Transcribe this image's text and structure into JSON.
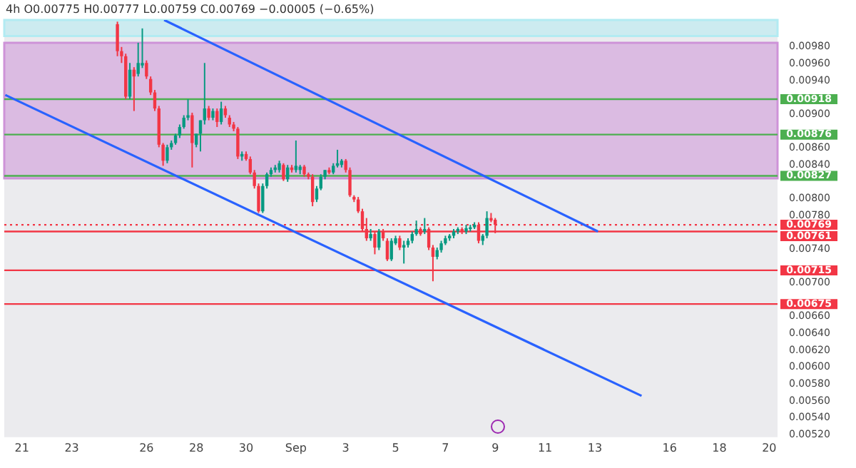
{
  "chart_data": {
    "type": "candlestick",
    "title": "4h O0.00775 H0.00777 L0.00759 C0.00769 −0.00005 (−0.65%)",
    "x": [
      "--08-24T20:00",
      "--08-25T00:00",
      "--08-25T04:00",
      "--08-25T08:00",
      "--08-25T12:00",
      "--08-25T16:00",
      "--08-25T20:00",
      "--08-26T00:00",
      "--08-26T04:00",
      "--08-26T08:00",
      "--08-26T12:00",
      "--08-26T16:00",
      "--08-26T20:00",
      "--08-27T00:00",
      "--08-27T04:00",
      "--08-27T08:00",
      "--08-27T12:00",
      "--08-27T16:00",
      "--08-27T20:00",
      "--08-28T00:00",
      "--08-28T04:00",
      "--08-28T08:00",
      "--08-28T12:00",
      "--08-28T16:00",
      "--08-28T20:00",
      "--08-29T00:00",
      "--08-29T04:00",
      "--08-29T08:00",
      "--08-29T12:00",
      "--08-29T16:00",
      "--08-29T20:00",
      "--08-30T00:00",
      "--08-30T04:00",
      "--08-30T08:00",
      "--08-30T12:00",
      "--08-30T16:00",
      "--08-30T20:00",
      "--08-31T00:00",
      "--08-31T04:00",
      "--08-31T08:00",
      "--08-31T12:00",
      "--08-31T16:00",
      "--08-31T20:00",
      "--09-01T00:00",
      "--09-01T04:00",
      "--09-01T08:00",
      "--09-01T12:00",
      "--09-01T16:00",
      "--09-01T20:00",
      "--09-02T00:00",
      "--09-02T04:00",
      "--09-02T08:00",
      "--09-02T12:00",
      "--09-02T16:00",
      "--09-02T20:00",
      "--09-03T00:00",
      "--09-03T04:00",
      "--09-03T08:00",
      "--09-03T12:00",
      "--09-03T16:00",
      "--09-03T20:00",
      "--09-04T00:00",
      "--09-04T04:00",
      "--09-04T08:00",
      "--09-04T12:00",
      "--09-04T16:00",
      "--09-04T20:00",
      "--09-05T00:00",
      "--09-05T04:00",
      "--09-05T08:00",
      "--09-05T12:00",
      "--09-05T16:00",
      "--09-05T20:00",
      "--09-06T00:00",
      "--09-06T04:00",
      "--09-06T08:00",
      "--09-06T12:00",
      "--09-06T16:00",
      "--09-06T20:00",
      "--09-07T00:00",
      "--09-07T04:00",
      "--09-07T08:00",
      "--09-07T12:00",
      "--09-07T16:00",
      "--09-07T20:00",
      "--09-08T00:00",
      "--09-08T04:00",
      "--09-08T08:00",
      "--09-08T12:00",
      "--09-08T16:00",
      "--09-08T20:00",
      "--09-09T00:00"
    ],
    "ohlc": [
      [
        0.01007,
        0.0101,
        0.00969,
        0.00975
      ],
      [
        0.00975,
        0.0098,
        0.00961,
        0.00969
      ],
      [
        0.00969,
        0.00972,
        0.00918,
        0.00921
      ],
      [
        0.00921,
        0.00961,
        0.00918,
        0.00953
      ],
      [
        0.00953,
        0.00956,
        0.00904,
        0.00945
      ],
      [
        0.00948,
        0.00985,
        0.00945,
        0.00961
      ],
      [
        0.00958,
        0.01002,
        0.00955,
        0.00961
      ],
      [
        0.00961,
        0.00964,
        0.00942,
        0.00945
      ],
      [
        0.00942,
        0.00945,
        0.00923,
        0.00926
      ],
      [
        0.00926,
        0.00929,
        0.00904,
        0.00907
      ],
      [
        0.00907,
        0.0091,
        0.00861,
        0.00864
      ],
      [
        0.00864,
        0.00866,
        0.00839,
        0.00845
      ],
      [
        0.00845,
        0.00864,
        0.00842,
        0.00861
      ],
      [
        0.00861,
        0.00869,
        0.00858,
        0.00866
      ],
      [
        0.00866,
        0.00877,
        0.00864,
        0.00875
      ],
      [
        0.00875,
        0.00888,
        0.00872,
        0.00885
      ],
      [
        0.00885,
        0.00899,
        0.00883,
        0.00896
      ],
      [
        0.00896,
        0.00918,
        0.00893,
        0.00899
      ],
      [
        0.00899,
        0.00902,
        0.00837,
        0.00866
      ],
      [
        0.00864,
        0.00877,
        0.00861,
        0.00877
      ],
      [
        0.00877,
        0.00893,
        0.00856,
        0.00893
      ],
      [
        0.00893,
        0.00961,
        0.00888,
        0.00907
      ],
      [
        0.00907,
        0.0091,
        0.00893,
        0.00896
      ],
      [
        0.00896,
        0.00907,
        0.00893,
        0.00904
      ],
      [
        0.00904,
        0.00907,
        0.00885,
        0.00891
      ],
      [
        0.00891,
        0.00915,
        0.00888,
        0.00907
      ],
      [
        0.00907,
        0.0091,
        0.00896,
        0.00899
      ],
      [
        0.00896,
        0.00899,
        0.00885,
        0.00888
      ],
      [
        0.00888,
        0.00891,
        0.0088,
        0.00883
      ],
      [
        0.00883,
        0.00885,
        0.00847,
        0.0085
      ],
      [
        0.0085,
        0.00856,
        0.00845,
        0.00853
      ],
      [
        0.00853,
        0.00856,
        0.00845,
        0.00847
      ],
      [
        0.00847,
        0.0085,
        0.00829,
        0.00831
      ],
      [
        0.00831,
        0.00834,
        0.00812,
        0.00815
      ],
      [
        0.00815,
        0.00818,
        0.00783,
        0.00785
      ],
      [
        0.00785,
        0.00818,
        0.00783,
        0.00815
      ],
      [
        0.00815,
        0.00831,
        0.00812,
        0.00829
      ],
      [
        0.00829,
        0.00837,
        0.00826,
        0.00834
      ],
      [
        0.00834,
        0.0084,
        0.00831,
        0.00837
      ],
      [
        0.00834,
        0.00845,
        0.00831,
        0.00842
      ],
      [
        0.0084,
        0.00842,
        0.00821,
        0.00823
      ],
      [
        0.00823,
        0.0084,
        0.0082,
        0.00837
      ],
      [
        0.00837,
        0.0084,
        0.00831,
        0.00834
      ],
      [
        0.00834,
        0.00869,
        0.00831,
        0.00839
      ],
      [
        0.00834,
        0.0084,
        0.00829,
        0.00838
      ],
      [
        0.00838,
        0.0084,
        0.00826,
        0.00829
      ],
      [
        0.00829,
        0.00831,
        0.00823,
        0.00826
      ],
      [
        0.00826,
        0.00829,
        0.00791,
        0.00796
      ],
      [
        0.00799,
        0.00815,
        0.00796,
        0.00812
      ],
      [
        0.00812,
        0.00829,
        0.0081,
        0.00826
      ],
      [
        0.00826,
        0.00834,
        0.00823,
        0.00834
      ],
      [
        0.00834,
        0.00837,
        0.00829,
        0.00831
      ],
      [
        0.00831,
        0.00842,
        0.00829,
        0.00839
      ],
      [
        0.00839,
        0.00858,
        0.00837,
        0.00842
      ],
      [
        0.0084,
        0.00847,
        0.00837,
        0.00845
      ],
      [
        0.00845,
        0.00847,
        0.00831,
        0.00834
      ],
      [
        0.00834,
        0.00837,
        0.00802,
        0.00804
      ],
      [
        0.00802,
        0.00804,
        0.00796,
        0.00799
      ],
      [
        0.00799,
        0.00802,
        0.00783,
        0.00785
      ],
      [
        0.00785,
        0.00788,
        0.00761,
        0.00764
      ],
      [
        0.00764,
        0.00777,
        0.0075,
        0.00753
      ],
      [
        0.00753,
        0.00764,
        0.0075,
        0.00758
      ],
      [
        0.00758,
        0.00761,
        0.00734,
        0.00742
      ],
      [
        0.00742,
        0.00764,
        0.00739,
        0.00761
      ],
      [
        0.00761,
        0.00764,
        0.0075,
        0.00753
      ],
      [
        0.0075,
        0.00753,
        0.00726,
        0.00728
      ],
      [
        0.00728,
        0.00753,
        0.00726,
        0.0075
      ],
      [
        0.00747,
        0.00756,
        0.00745,
        0.00753
      ],
      [
        0.00753,
        0.00756,
        0.00739,
        0.00742
      ],
      [
        0.00742,
        0.0075,
        0.00723,
        0.00745
      ],
      [
        0.00745,
        0.00753,
        0.00742,
        0.0075
      ],
      [
        0.0075,
        0.00761,
        0.00747,
        0.00758
      ],
      [
        0.00758,
        0.00774,
        0.00756,
        0.00764
      ],
      [
        0.00764,
        0.00766,
        0.00756,
        0.00758
      ],
      [
        0.00761,
        0.00777,
        0.00758,
        0.00764
      ],
      [
        0.00764,
        0.00766,
        0.00739,
        0.00742
      ],
      [
        0.00742,
        0.00745,
        0.00702,
        0.00731
      ],
      [
        0.00731,
        0.00742,
        0.00728,
        0.00739
      ],
      [
        0.00739,
        0.0075,
        0.00736,
        0.00747
      ],
      [
        0.00747,
        0.00756,
        0.00745,
        0.00753
      ],
      [
        0.00753,
        0.00758,
        0.0075,
        0.00756
      ],
      [
        0.00756,
        0.00764,
        0.00753,
        0.00761
      ],
      [
        0.00761,
        0.00766,
        0.00758,
        0.00764
      ],
      [
        0.00764,
        0.00766,
        0.00758,
        0.00761
      ],
      [
        0.00761,
        0.00769,
        0.00758,
        0.00765
      ],
      [
        0.00764,
        0.00769,
        0.00761,
        0.00766
      ],
      [
        0.00766,
        0.00772,
        0.00764,
        0.00769
      ],
      [
        0.00769,
        0.00772,
        0.00747,
        0.0075
      ],
      [
        0.0075,
        0.00758,
        0.00745,
        0.00756
      ],
      [
        0.00756,
        0.00785,
        0.00753,
        0.00777
      ],
      [
        0.00777,
        0.00783,
        0.00772,
        0.00774
      ],
      [
        0.00775,
        0.00777,
        0.00759,
        0.00769
      ]
    ],
    "series": [
      {
        "type": "line",
        "x": [
          "--08-26T17:00",
          "--09-13T03:00"
        ],
        "values": [
          0.01012,
          0.00761
        ],
        "color": "#2962ff"
      },
      {
        "type": "line",
        "x": [
          "--08-20T08:00",
          "--09-14T21:00"
        ],
        "values": [
          0.00923,
          0.00566
        ],
        "color": "#2962ff"
      }
    ],
    "xlim": [
      "--08-20T07:00",
      "--09-20T08:00"
    ],
    "xticks": [
      {
        "value": "--08-21",
        "label": "21"
      },
      {
        "value": "--08-23",
        "label": "23"
      },
      {
        "value": "--08-26",
        "label": "26"
      },
      {
        "value": "--08-28",
        "label": "28"
      },
      {
        "value": "--08-30",
        "label": "30"
      },
      {
        "value": "--09-01",
        "label": "Sep"
      },
      {
        "value": "--09-03",
        "label": "3"
      },
      {
        "value": "--09-05",
        "label": "5"
      },
      {
        "value": "--09-07",
        "label": "7"
      },
      {
        "value": "--09-09",
        "label": "9"
      },
      {
        "value": "--09-11",
        "label": "11"
      },
      {
        "value": "--09-13",
        "label": "13"
      },
      {
        "value": "--09-16",
        "label": "16"
      },
      {
        "value": "--09-18",
        "label": "18"
      },
      {
        "value": "--09-20",
        "label": "20"
      }
    ],
    "ylim": [
      0.00517,
      0.01012
    ],
    "yticks": [
      {
        "value": 0.0098,
        "label": "0.00980"
      },
      {
        "value": 0.0096,
        "label": "0.00960"
      },
      {
        "value": 0.0094,
        "label": "0.00940"
      },
      {
        "value": 0.009,
        "label": "0.00900"
      },
      {
        "value": 0.0086,
        "label": "0.00860"
      },
      {
        "value": 0.0084,
        "label": "0.00840"
      },
      {
        "value": 0.008,
        "label": "0.00800"
      },
      {
        "value": 0.0078,
        "label": "0.00780"
      },
      {
        "value": 0.0074,
        "label": "0.00740"
      },
      {
        "value": 0.007,
        "label": "0.00700"
      },
      {
        "value": 0.0066,
        "label": "0.00660"
      },
      {
        "value": 0.0064,
        "label": "0.00640"
      },
      {
        "value": 0.0062,
        "label": "0.00620"
      },
      {
        "value": 0.006,
        "label": "0.00600"
      },
      {
        "value": 0.0058,
        "label": "0.00580"
      },
      {
        "value": 0.0056,
        "label": "0.00560"
      },
      {
        "value": 0.0054,
        "label": "0.00540"
      },
      {
        "value": 0.0052,
        "label": "0.00520"
      }
    ],
    "bands": [
      {
        "axis": "y",
        "from": 0.00993,
        "to": 0.01012,
        "color": "#b2ebf2"
      },
      {
        "axis": "y",
        "from": 0.00824,
        "to": 0.00985,
        "color": "#ce93d8"
      }
    ],
    "ref_lines": [
      {
        "axis": "y",
        "value": 0.00918,
        "label": "0.00918",
        "color": "#4caf50"
      },
      {
        "axis": "y",
        "value": 0.00876,
        "label": "0.00876",
        "color": "#4caf50"
      },
      {
        "axis": "y",
        "value": 0.00827,
        "label": "0.00827",
        "color": "#4caf50"
      },
      {
        "axis": "y",
        "value": 0.00769,
        "label": "0.00769",
        "color": "#f23645",
        "line_style": "dotted"
      },
      {
        "axis": "y",
        "value": 0.00761,
        "label": "0.00761",
        "color": "#f23645"
      },
      {
        "axis": "y",
        "value": 0.00715,
        "label": "0.00715",
        "color": "#f23645"
      },
      {
        "axis": "y",
        "value": 0.00675,
        "label": "0.00675",
        "color": "#f23645"
      }
    ],
    "grid": false,
    "marker": "none"
  }
}
